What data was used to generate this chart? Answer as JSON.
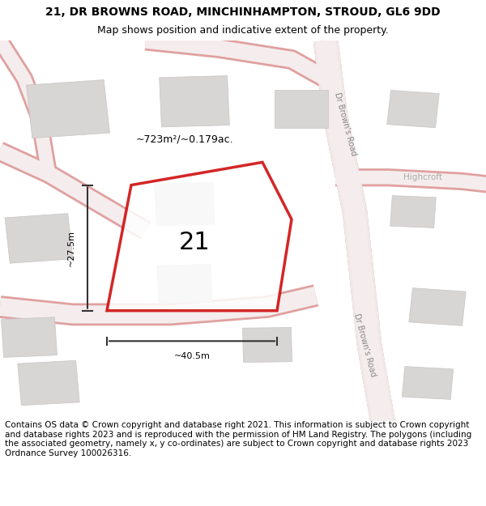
{
  "title": "21, DR BROWNS ROAD, MINCHINHAMPTON, STROUD, GL6 9DD",
  "subtitle": "Map shows position and indicative extent of the property.",
  "footer": "Contains OS data © Crown copyright and database right 2021. This information is subject to Crown copyright and database rights 2023 and is reproduced with the permission of HM Land Registry. The polygons (including the associated geometry, namely x, y co-ordinates) are subject to Crown copyright and database rights 2023 Ordnance Survey 100026316.",
  "bg_color": "#f5f0f0",
  "map_bg": "#f7f4f4",
  "road_color": "#e8a0a0",
  "road_fill": "#f5eded",
  "building_color": "#d0cccc",
  "building_fill": "#d8d4d4",
  "plot_color": "#cc0000",
  "plot_fill": "#ffffff",
  "plot_fill_alpha": 0.5,
  "area_text": "~723m²/~0.179ac.",
  "plot_number": "21",
  "dim_width": "~40.5m",
  "dim_height": "~27.5m",
  "road_label_1": "Dr Brown's Road",
  "road_label_2": "Dr Brown's Road",
  "street_label": "Highcroft",
  "title_fontsize": 10,
  "subtitle_fontsize": 9,
  "footer_fontsize": 7.5
}
